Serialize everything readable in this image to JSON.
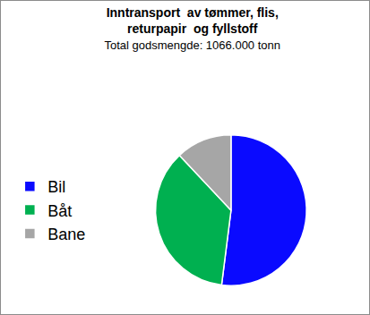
{
  "chart_data": {
    "type": "pie",
    "title": "Inntransport  av tømmer, flis, returpapir  og fyllstoff",
    "subtitle": "Total godsmengde: 1066.000 tonn",
    "categories": [
      "Bil",
      "Båt",
      "Bane"
    ],
    "values": [
      52,
      36,
      12
    ],
    "colors": [
      "#0a0aff",
      "#00b050",
      "#a6a6a6"
    ],
    "legend": "left",
    "data_labels": false
  }
}
